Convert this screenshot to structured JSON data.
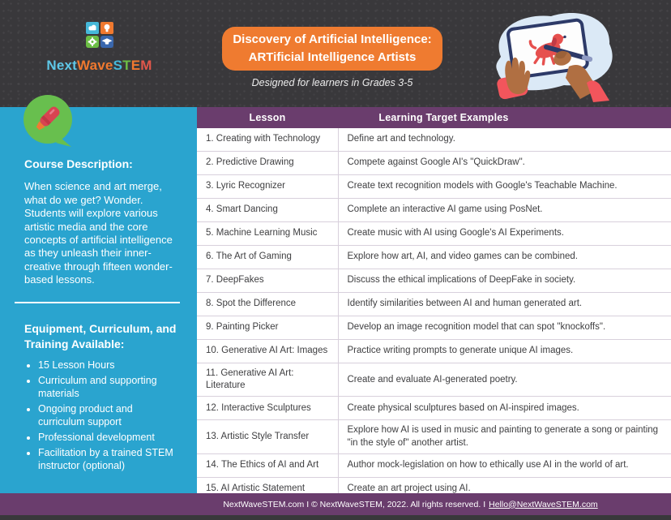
{
  "header": {
    "logo_segments": [
      {
        "text": "Next",
        "color": "#5ec8e8"
      },
      {
        "text": "Wave",
        "color": "#f0792f"
      },
      {
        "text": "S",
        "color": "#45b8d9"
      },
      {
        "text": "T",
        "color": "#6cbe45"
      },
      {
        "text": "E",
        "color": "#f0792f"
      },
      {
        "text": "M",
        "color": "#e2574b"
      }
    ],
    "title_line1": "Discovery of Artificial Intelligence:",
    "title_line2": "ARTificial Intelligence Artists",
    "subtitle": "Designed for learners in Grades 3-5"
  },
  "sidebar": {
    "course_description_heading": "Course Description:",
    "course_description": "When science and art merge, what do we get? Wonder. Students will explore various artistic media and the core concepts of artificial intelligence as they unleash their inner-creative through fifteen wonder-based lessons.",
    "equipment_heading": "Equipment, Curriculum, and Training Available:",
    "equipment_items": [
      "15 Lesson Hours",
      "Curriculum and supporting materials",
      "Ongoing product and curriculum support",
      "Professional development",
      "Facilitation by a trained STEM instructor (optional)"
    ]
  },
  "table": {
    "columns": [
      "Lesson",
      "Learning Target Examples"
    ],
    "rows": [
      {
        "lesson": "1. Creating with Technology",
        "target": "Define art and technology."
      },
      {
        "lesson": "2. Predictive Drawing",
        "target": "Compete against Google AI's \"QuickDraw\"."
      },
      {
        "lesson": "3. Lyric Recognizer",
        "target": "Create text recognition models with Google's Teachable Machine."
      },
      {
        "lesson": "4. Smart Dancing",
        "target": "Complete an interactive AI game using PosNet."
      },
      {
        "lesson": "5. Machine Learning Music",
        "target": "Create music with AI using Google's AI Experiments."
      },
      {
        "lesson": "6. The Art of Gaming",
        "target": "Explore how art, AI, and video games can be combined."
      },
      {
        "lesson": "7. DeepFakes",
        "target": "Discuss the ethical implications of DeepFake in society."
      },
      {
        "lesson": "8. Spot the Difference",
        "target": "Identify similarities between AI and human generated art."
      },
      {
        "lesson": "9. Painting Picker",
        "target": "Develop an image recognition model that can spot \"knockoffs\"."
      },
      {
        "lesson": "10. Generative AI Art: Images",
        "target": "Practice writing prompts to generate unique AI images."
      },
      {
        "lesson": "11. Generative AI Art: Literature",
        "target": "Create and evaluate AI-generated poetry."
      },
      {
        "lesson": "12. Interactive Sculptures",
        "target": "Create physical sculptures based on AI-inspired images."
      },
      {
        "lesson": "13. Artistic Style Transfer",
        "target": "Explore how AI is used in music and painting to generate a song or painting \"in the style of\" another artist."
      },
      {
        "lesson": "14. The Ethics of AI and Art",
        "target": "Author mock-legislation on how to ethically use AI in the world of art."
      },
      {
        "lesson": "15. AI Artistic Statement",
        "target": "Create an art project using AI."
      }
    ]
  },
  "footer": {
    "text": "NextWaveSTEM.com I © NextWaveSTEM, 2022. All rights reserved. I",
    "email_link": "Hello@NextWaveSTEM.com"
  },
  "colors": {
    "orange": "#ef7b30",
    "cyan": "#2aa4cf",
    "purple": "#6a3d6d",
    "green": "#68bf4e",
    "chalk": "#39383b",
    "crayon_red": "#d84351",
    "dog_red": "#e6504e",
    "navy": "#2d3a68",
    "blob_blue": "#dbe9f6",
    "table_border": "#d8d0dc"
  }
}
